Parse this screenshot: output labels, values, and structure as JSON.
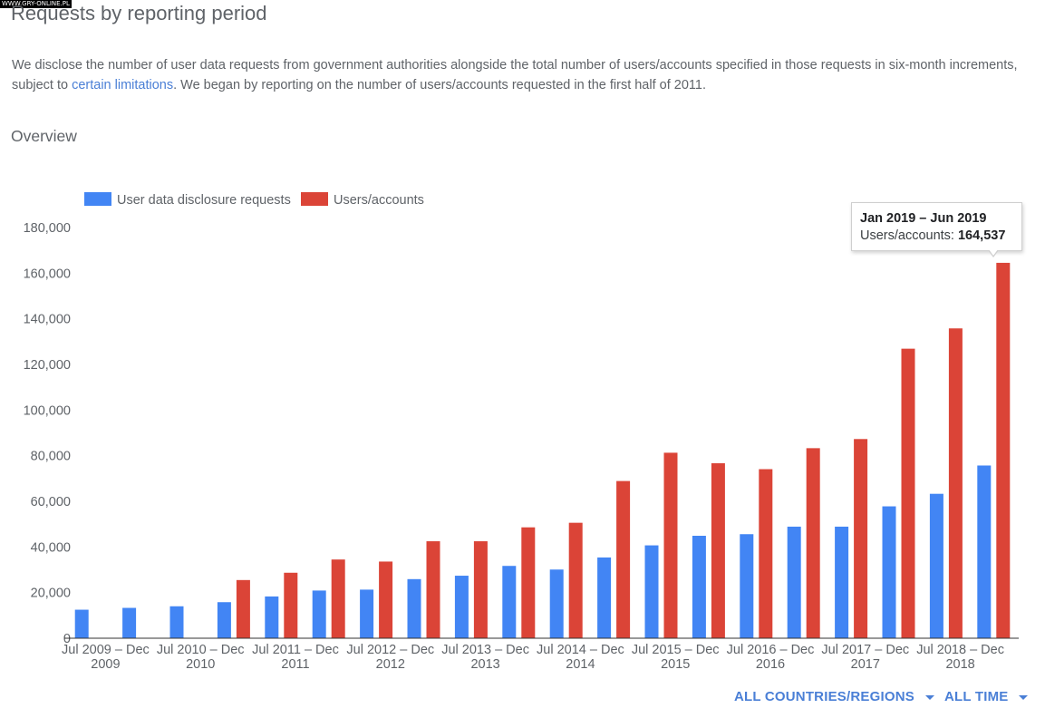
{
  "watermark": "WWW.GRY-ONLINE.PL",
  "page": {
    "title": "Requests by reporting period",
    "description_part1": "We disclose the number of user data requests from government authorities alongside the total number of users/accounts specified in those requests in six-month increments, subject to ",
    "description_link": "certain limitations",
    "description_part2": ". We began by reporting on the number of users/accounts requested in the first half of 2011.",
    "overview_label": "Overview"
  },
  "tooltip": {
    "period": "Jan 2019 – Jun 2019",
    "label": "Users/accounts:",
    "value": "164,537"
  },
  "filters": {
    "region": "ALL COUNTRIES/REGIONS",
    "time": "ALL TIME"
  },
  "colors": {
    "requests": "#4285f4",
    "accounts": "#db4437",
    "axis": "#333333",
    "tick_text": "#5f6368"
  },
  "chart_data": {
    "type": "bar",
    "title": "Overview",
    "categories": [
      "2009-H2",
      "2010-H1",
      "2010-H2",
      "2011-H1",
      "2011-H2",
      "2012-H1",
      "2012-H2",
      "2013-H1",
      "2013-H2",
      "2014-H1",
      "2014-H2",
      "2015-H1",
      "2015-H2",
      "2016-H1",
      "2016-H2",
      "2017-H1",
      "2017-H2",
      "2018-H1",
      "2018-H2",
      "2019-H1"
    ],
    "series": [
      {
        "name": "User data disclosure requests",
        "values": [
          12500,
          13300,
          14000,
          15800,
          18300,
          20900,
          21300,
          25900,
          27400,
          31700,
          30100,
          35400,
          40700,
          44900,
          45600,
          48900,
          48900,
          57800,
          63300,
          75700
        ]
      },
      {
        "name": "Users/accounts",
        "values": [
          null,
          null,
          null,
          25500,
          28700,
          34500,
          33600,
          42500,
          42500,
          48600,
          50600,
          68900,
          81300,
          76700,
          74100,
          83300,
          87300,
          126900,
          135800,
          164537
        ]
      }
    ],
    "x_tick_labels": [
      {
        "top": "Jul 2009 – Dec",
        "bottom": "2009"
      },
      {
        "top": "Jul 2010 – Dec",
        "bottom": "2010"
      },
      {
        "top": "Jul 2011 – Dec",
        "bottom": "2011"
      },
      {
        "top": "Jul 2012 – Dec",
        "bottom": "2012"
      },
      {
        "top": "Jul 2013 – Dec",
        "bottom": "2013"
      },
      {
        "top": "Jul 2014 – Dec",
        "bottom": "2014"
      },
      {
        "top": "Jul 2015 – Dec",
        "bottom": "2015"
      },
      {
        "top": "Jul 2016 – Dec",
        "bottom": "2016"
      },
      {
        "top": "Jul 2017 – Dec",
        "bottom": "2017"
      },
      {
        "top": "Jul 2018 – Dec",
        "bottom": "2018"
      }
    ],
    "y_ticks": [
      0,
      20000,
      40000,
      60000,
      80000,
      100000,
      120000,
      140000,
      160000,
      180000
    ],
    "y_tick_labels": [
      "0",
      "20,000",
      "40,000",
      "60,000",
      "80,000",
      "100,000",
      "120,000",
      "140,000",
      "160,000",
      "180,000"
    ],
    "ylim": [
      0,
      180000
    ],
    "legend": [
      "User data disclosure requests",
      "Users/accounts"
    ],
    "legend_position": "top-left",
    "grid": false,
    "xlabel": "",
    "ylabel": ""
  }
}
